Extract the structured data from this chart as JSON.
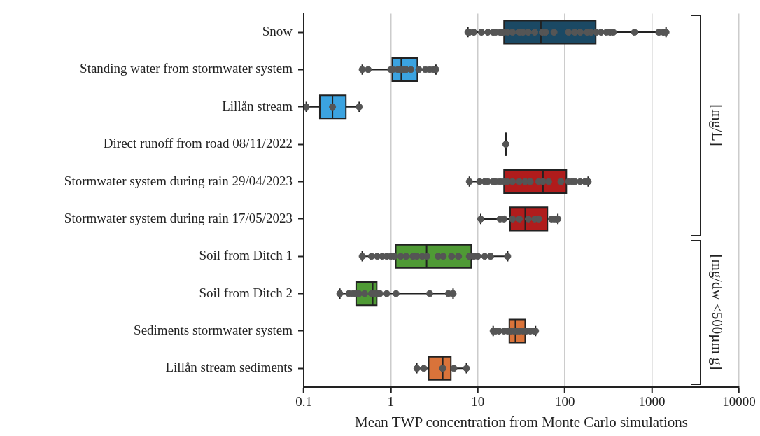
{
  "chart_data": {
    "type": "box",
    "orientation": "horizontal",
    "xlabel": "Mean TWP concentration from Monte Carlo simulations",
    "categories": [
      "Snow",
      "Standing water from stormwater system",
      "Lillån stream",
      "Direct runoff from road 08/11/2022",
      "Stormwater system during rain 29/04/2023",
      "Stormwater system during rain 17/05/2023",
      "Soil from Ditch 1",
      "Soil from Ditch 2",
      "Sediments stormwater system",
      "Lillån stream sediments"
    ],
    "colors": [
      "#1b4964",
      "#3ba3e0",
      "#3ba3e0",
      null,
      "#b01c1c",
      "#b01c1c",
      "#4f9a35",
      "#4f9a35",
      "#d9733a",
      "#d9733a"
    ],
    "boxes": [
      {
        "low": 7.7,
        "q1": 20,
        "median": 53,
        "q3": 226,
        "high": 1450
      },
      {
        "low": 0.47,
        "q1": 1.04,
        "median": 1.32,
        "q3": 2.02,
        "high": 3.3
      },
      {
        "low": 0.107,
        "q1": 0.153,
        "median": 0.214,
        "q3": 0.305,
        "high": 0.434
      },
      {
        "low": 21,
        "q1": 21,
        "median": 21,
        "q3": 21,
        "high": 21
      },
      {
        "low": 8,
        "q1": 20,
        "median": 56,
        "q3": 104,
        "high": 185
      },
      {
        "low": 10.8,
        "q1": 23.5,
        "median": 35,
        "q3": 63,
        "high": 83
      },
      {
        "low": 0.47,
        "q1": 1.14,
        "median": 2.58,
        "q3": 8.4,
        "high": 22
      },
      {
        "low": 0.26,
        "q1": 0.4,
        "median": 0.62,
        "q3": 0.69,
        "high": 5.2
      },
      {
        "low": 15,
        "q1": 23,
        "median": 27,
        "q3": 35,
        "high": 46
      },
      {
        "low": 1.99,
        "q1": 2.72,
        "median": 3.95,
        "q3": 4.9,
        "high": 7.4
      }
    ],
    "series": [
      {
        "type": "scatter",
        "color": "#555555",
        "x": [
          "Snow",
          "Snow",
          "Snow",
          "Snow",
          "Snow",
          "Snow",
          "Snow",
          "Snow",
          "Snow",
          "Snow",
          "Snow",
          "Snow",
          "Snow",
          "Snow",
          "Snow",
          "Snow",
          "Snow",
          "Snow",
          "Snow",
          "Snow",
          "Snow",
          "Snow",
          "Snow",
          "Snow",
          "Snow",
          "Snow",
          "Snow",
          "Snow",
          "Snow",
          "Snow",
          "Snow",
          "Snow",
          "Snow",
          "Standing water from stormwater system",
          "Standing water from stormwater system",
          "Standing water from stormwater system",
          "Standing water from stormwater system",
          "Standing water from stormwater system",
          "Standing water from stormwater system",
          "Standing water from stormwater system",
          "Standing water from stormwater system",
          "Standing water from stormwater system",
          "Standing water from stormwater system",
          "Standing water from stormwater system",
          "Standing water from stormwater system",
          "Standing water from stormwater system",
          "Standing water from stormwater system",
          "Lillån stream",
          "Lillån stream",
          "Lillån stream",
          "Direct runoff from road 08/11/2022",
          "Stormwater system during rain 29/04/2023",
          "Stormwater system during rain 29/04/2023",
          "Stormwater system during rain 29/04/2023",
          "Stormwater system during rain 29/04/2023",
          "Stormwater system during rain 29/04/2023",
          "Stormwater system during rain 29/04/2023",
          "Stormwater system during rain 29/04/2023",
          "Stormwater system during rain 29/04/2023",
          "Stormwater system during rain 29/04/2023",
          "Stormwater system during rain 29/04/2023",
          "Stormwater system during rain 29/04/2023",
          "Stormwater system during rain 29/04/2023",
          "Stormwater system during rain 29/04/2023",
          "Stormwater system during rain 29/04/2023",
          "Stormwater system during rain 29/04/2023",
          "Stormwater system during rain 29/04/2023",
          "Stormwater system during rain 29/04/2023",
          "Stormwater system during rain 29/04/2023",
          "Stormwater system during rain 29/04/2023",
          "Stormwater system during rain 29/04/2023",
          "Stormwater system during rain 29/04/2023",
          "Stormwater system during rain 29/04/2023",
          "Stormwater system during rain 29/04/2023",
          "Stormwater system during rain 17/05/2023",
          "Stormwater system during rain 17/05/2023",
          "Stormwater system during rain 17/05/2023",
          "Stormwater system during rain 17/05/2023",
          "Stormwater system during rain 17/05/2023",
          "Stormwater system during rain 17/05/2023",
          "Stormwater system during rain 17/05/2023",
          "Stormwater system during rain 17/05/2023",
          "Stormwater system during rain 17/05/2023",
          "Stormwater system during rain 17/05/2023",
          "Stormwater system during rain 17/05/2023",
          "Stormwater system during rain 17/05/2023",
          "Soil from Ditch 1",
          "Soil from Ditch 1",
          "Soil from Ditch 1",
          "Soil from Ditch 1",
          "Soil from Ditch 1",
          "Soil from Ditch 1",
          "Soil from Ditch 1",
          "Soil from Ditch 1",
          "Soil from Ditch 1",
          "Soil from Ditch 1",
          "Soil from Ditch 1",
          "Soil from Ditch 1",
          "Soil from Ditch 1",
          "Soil from Ditch 1",
          "Soil from Ditch 1",
          "Soil from Ditch 1",
          "Soil from Ditch 1",
          "Soil from Ditch 1",
          "Soil from Ditch 1",
          "Soil from Ditch 1",
          "Soil from Ditch 1",
          "Soil from Ditch 1",
          "Soil from Ditch 1",
          "Soil from Ditch 2",
          "Soil from Ditch 2",
          "Soil from Ditch 2",
          "Soil from Ditch 2",
          "Soil from Ditch 2",
          "Soil from Ditch 2",
          "Soil from Ditch 2",
          "Soil from Ditch 2",
          "Soil from Ditch 2",
          "Soil from Ditch 2",
          "Soil from Ditch 2",
          "Soil from Ditch 2",
          "Soil from Ditch 2",
          "Soil from Ditch 2",
          "Soil from Ditch 2",
          "Sediments stormwater system",
          "Sediments stormwater system",
          "Sediments stormwater system",
          "Sediments stormwater system",
          "Sediments stormwater system",
          "Sediments stormwater system",
          "Sediments stormwater system",
          "Sediments stormwater system",
          "Sediments stormwater system",
          "Sediments stormwater system",
          "Sediments stormwater system",
          "Sediments stormwater system",
          "Sediments stormwater system",
          "Sediments stormwater system",
          "Lillån stream sediments",
          "Lillån stream sediments",
          "Lillån stream sediments",
          "Lillån stream sediments",
          "Lillån stream sediments",
          "Lillån stream sediments"
        ],
        "values": [
          7.7,
          8,
          9,
          11,
          13,
          15,
          16,
          18,
          19,
          20,
          22,
          25,
          30,
          33,
          38,
          45,
          55,
          60,
          75,
          110,
          130,
          150,
          180,
          200,
          230,
          260,
          300,
          330,
          360,
          630,
          1200,
          1350,
          1450,
          0.47,
          0.55,
          1,
          1.05,
          1.2,
          1.3,
          1.4,
          1.5,
          1.7,
          2.1,
          2.5,
          2.8,
          3.1,
          3.3,
          0.107,
          0.214,
          0.434,
          21,
          8,
          10.5,
          12,
          13,
          15,
          16,
          18,
          20,
          22,
          25,
          30,
          35,
          40,
          50,
          56,
          65,
          90,
          110,
          120,
          130,
          150,
          170,
          185,
          10.8,
          18,
          20,
          25,
          30,
          38,
          45,
          50,
          70,
          75,
          80,
          83,
          0.47,
          0.6,
          0.7,
          0.8,
          0.9,
          1,
          1.1,
          1.3,
          1.5,
          1.8,
          2,
          2.3,
          2.6,
          3.5,
          4,
          5,
          6,
          8,
          9,
          10,
          12,
          14,
          22,
          0.26,
          0.33,
          0.37,
          0.4,
          0.43,
          0.5,
          0.6,
          0.65,
          0.7,
          0.75,
          0.9,
          1.15,
          2.8,
          4.6,
          5.2,
          15,
          16,
          17.5,
          20,
          22,
          24,
          26,
          28,
          30,
          33,
          36,
          40,
          44,
          46,
          2,
          2.4,
          3.95,
          3.95,
          5.3,
          7.4
        ]
      }
    ],
    "xlim": [
      0.1,
      10000
    ],
    "xticks": [
      0.1,
      1,
      10,
      100,
      1000,
      10000
    ],
    "log": "x",
    "grid": "x",
    "legend": false,
    "annotations": [
      "[mg/L]",
      "[mg/dw <500µm g]"
    ]
  }
}
